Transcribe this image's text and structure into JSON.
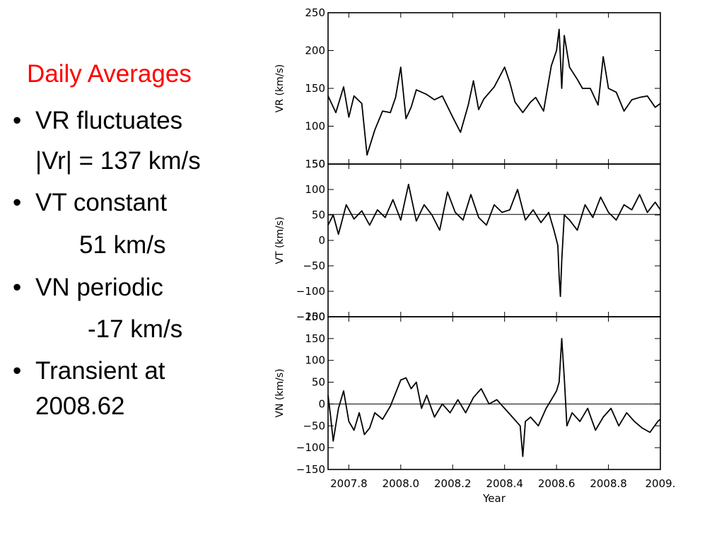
{
  "slide": {
    "heading": "Daily Averages",
    "heading_color": "#ff0000",
    "bullet_symbol": "•",
    "bullets": [
      {
        "text": "VR fluctuates",
        "detail": "|Vr| = 137 km/s"
      },
      {
        "text": "VT constant",
        "detail": "51 km/s"
      },
      {
        "text": "VN periodic",
        "detail": "-17 km/s"
      },
      {
        "text": "Transient at",
        "detail": "2008.62"
      }
    ]
  },
  "chart_data": {
    "type": "line",
    "xlabel": "Year",
    "x_ticks": [
      "2007.8",
      "2008.0",
      "2008.2",
      "2008.4",
      "2008.6",
      "2008.8",
      "2009."
    ],
    "xlim": [
      2007.72,
      2009.0
    ],
    "grid": false,
    "line_color": "#000000",
    "panels": [
      {
        "ylabel": "VR (km/s)",
        "ylim": [
          50,
          250
        ],
        "y_ticks": [
          50,
          100,
          150,
          200,
          250
        ],
        "reference_line": null,
        "series": [
          {
            "x": [
              2007.72,
              2007.75,
              2007.78,
              2007.8,
              2007.82,
              2007.85,
              2007.87,
              2007.9,
              2007.93,
              2007.96,
              2007.98,
              2008.0,
              2008.02,
              2008.04,
              2008.06,
              2008.1,
              2008.13,
              2008.16,
              2008.2,
              2008.23,
              2008.26,
              2008.28,
              2008.3,
              2008.32,
              2008.36,
              2008.4,
              2008.42,
              2008.44,
              2008.47,
              2008.5,
              2008.52,
              2008.55,
              2008.58,
              2008.6,
              2008.61,
              2008.62,
              2008.63,
              2008.65,
              2008.68,
              2008.7,
              2008.73,
              2008.76,
              2008.78,
              2008.8,
              2008.83,
              2008.86,
              2008.89,
              2008.92,
              2008.95,
              2008.98,
              2009.0
            ],
            "values": [
              140,
              118,
              152,
              112,
              140,
              130,
              62,
              95,
              120,
              118,
              138,
              178,
              110,
              125,
              148,
              142,
              135,
              140,
              112,
              92,
              128,
              160,
              122,
              136,
              152,
              178,
              158,
              132,
              118,
              132,
              138,
              120,
              180,
              200,
              228,
              150,
              220,
              178,
              162,
              150,
              150,
              128,
              192,
              150,
              145,
              120,
              135,
              138,
              140,
              125,
              130
            ]
          }
        ]
      },
      {
        "ylabel": "VT (km/s)",
        "ylim": [
          -150,
          150
        ],
        "y_ticks": [
          -150,
          -100,
          -50,
          0,
          50,
          100,
          150
        ],
        "reference_line": 51,
        "series": [
          {
            "x": [
              2007.72,
              2007.74,
              2007.76,
              2007.79,
              2007.82,
              2007.85,
              2007.88,
              2007.91,
              2007.94,
              2007.97,
              2008.0,
              2008.03,
              2008.06,
              2008.09,
              2008.12,
              2008.15,
              2008.18,
              2008.21,
              2008.24,
              2008.27,
              2008.3,
              2008.33,
              2008.36,
              2008.39,
              2008.42,
              2008.45,
              2008.48,
              2008.51,
              2008.54,
              2008.57,
              2008.59,
              2008.605,
              2008.61,
              2008.615,
              2008.62,
              2008.63,
              2008.65,
              2008.68,
              2008.71,
              2008.74,
              2008.77,
              2008.8,
              2008.83,
              2008.86,
              2008.89,
              2008.92,
              2008.95,
              2008.98,
              2009.0
            ],
            "values": [
              30,
              50,
              12,
              70,
              42,
              58,
              30,
              60,
              45,
              80,
              40,
              110,
              38,
              70,
              50,
              20,
              95,
              55,
              40,
              90,
              45,
              30,
              70,
              55,
              60,
              100,
              40,
              60,
              35,
              55,
              20,
              -10,
              -70,
              -110,
              -40,
              50,
              40,
              20,
              70,
              45,
              85,
              55,
              40,
              70,
              60,
              90,
              55,
              75,
              60
            ]
          }
        ]
      },
      {
        "ylabel": "VN (km/s)",
        "ylim": [
          -150,
          200
        ],
        "y_ticks": [
          -150,
          -100,
          -50,
          0,
          50,
          100,
          150,
          200
        ],
        "reference_line": 0,
        "series": [
          {
            "x": [
              2007.72,
              2007.73,
              2007.74,
              2007.76,
              2007.78,
              2007.8,
              2007.82,
              2007.84,
              2007.86,
              2007.88,
              2007.9,
              2007.93,
              2007.96,
              2007.98,
              2008.0,
              2008.02,
              2008.04,
              2008.06,
              2008.08,
              2008.1,
              2008.13,
              2008.16,
              2008.19,
              2008.22,
              2008.25,
              2008.28,
              2008.31,
              2008.34,
              2008.37,
              2008.4,
              2008.43,
              2008.46,
              2008.47,
              2008.48,
              2008.5,
              2008.53,
              2008.56,
              2008.58,
              2008.6,
              2008.61,
              2008.62,
              2008.63,
              2008.64,
              2008.66,
              2008.69,
              2008.72,
              2008.75,
              2008.78,
              2008.81,
              2008.84,
              2008.87,
              2008.9,
              2008.93,
              2008.96,
              2008.99,
              2009.0
            ],
            "values": [
              20,
              -30,
              -85,
              -10,
              30,
              -40,
              -60,
              -20,
              -70,
              -55,
              -20,
              -35,
              -5,
              25,
              55,
              60,
              35,
              50,
              -10,
              20,
              -30,
              0,
              -20,
              10,
              -20,
              15,
              35,
              0,
              10,
              -10,
              -30,
              -50,
              -120,
              -40,
              -30,
              -50,
              -10,
              10,
              30,
              50,
              150,
              60,
              -50,
              -20,
              -40,
              -10,
              -60,
              -30,
              -10,
              -50,
              -20,
              -40,
              -55,
              -65,
              -40,
              -35
            ]
          }
        ]
      }
    ]
  }
}
